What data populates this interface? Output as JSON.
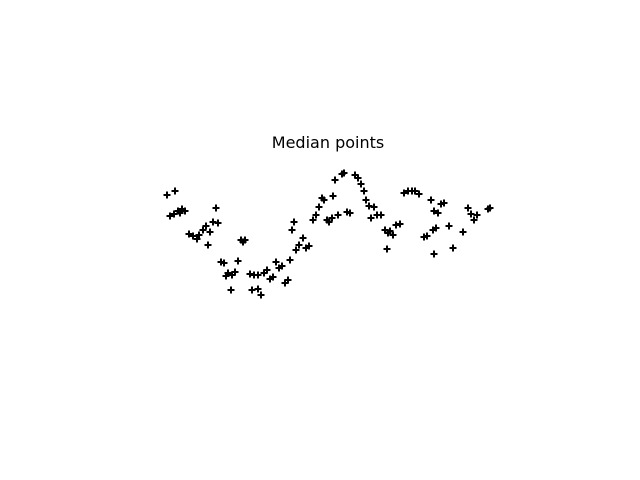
{
  "chart_data": {
    "type": "scatter",
    "title": "Median points",
    "color": "#000000",
    "marker": "plus",
    "x": [
      167,
      175,
      170,
      174,
      178,
      182,
      185,
      180,
      189,
      193,
      197,
      199,
      203,
      206,
      210,
      208,
      213,
      216,
      218,
      221,
      224,
      228,
      226,
      232,
      235,
      231,
      238,
      241,
      245,
      243,
      250,
      254,
      258,
      252,
      258,
      261,
      264,
      267,
      270,
      273,
      276,
      279,
      282,
      285,
      288,
      290,
      294,
      292,
      296,
      299,
      303,
      306,
      309,
      313,
      316,
      319,
      322,
      324,
      327,
      329,
      332,
      335,
      333,
      338,
      342,
      344,
      347,
      350,
      355,
      358,
      361,
      364,
      366,
      369,
      371,
      374,
      377,
      381,
      385,
      388,
      390,
      387,
      393,
      396,
      400,
      404,
      408,
      412,
      415,
      419,
      424,
      427,
      431,
      434,
      438,
      433,
      436,
      441,
      444,
      449,
      434,
      453,
      463,
      468,
      471,
      474,
      477,
      488,
      490
    ],
    "y": [
      285,
      289,
      264,
      266,
      269,
      271,
      269,
      267,
      246,
      244,
      241,
      245,
      250,
      254,
      248,
      235,
      258,
      272,
      257,
      218,
      217,
      207,
      204,
      205,
      208,
      190,
      219,
      240,
      240,
      238,
      206,
      205,
      205,
      190,
      191,
      185,
      207,
      210,
      201,
      203,
      218,
      212,
      214,
      197,
      200,
      220,
      258,
      250,
      230,
      235,
      242,
      232,
      234,
      260,
      265,
      273,
      282,
      280,
      260,
      258,
      262,
      300,
      284,
      265,
      306,
      307,
      268,
      267,
      305,
      302,
      296,
      289,
      280,
      274,
      262,
      273,
      265,
      265,
      250,
      247,
      249,
      231,
      245,
      255,
      256,
      287,
      289,
      289,
      289,
      286,
      243,
      244,
      280,
      269,
      267,
      250,
      252,
      276,
      277,
      254,
      226,
      232,
      248,
      272,
      266,
      260,
      265,
      271,
      272
    ]
  }
}
